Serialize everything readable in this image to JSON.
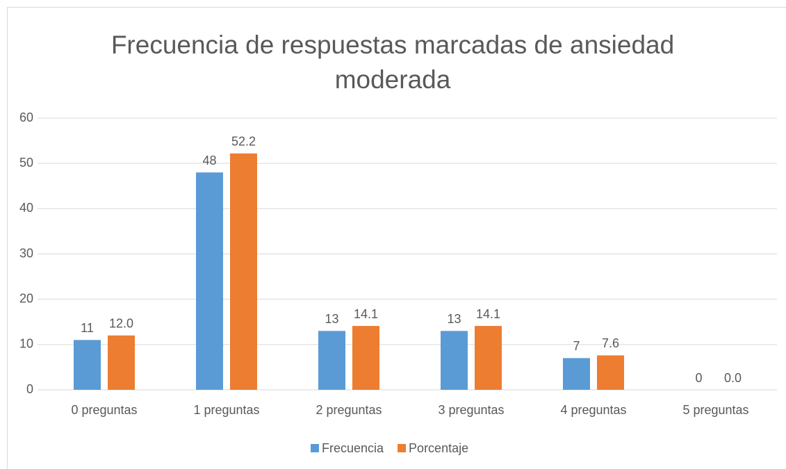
{
  "chart_data": {
    "type": "bar",
    "title": "Frecuencia de respuestas marcadas de ansiedad moderada",
    "categories": [
      "0 preguntas",
      "1 preguntas",
      "2 preguntas",
      "3 preguntas",
      "4 preguntas",
      "5 preguntas"
    ],
    "series": [
      {
        "name": "Frecuencia",
        "color": "#5b9bd5",
        "values": [
          11,
          48,
          13,
          13,
          7,
          0
        ]
      },
      {
        "name": "Porcentaje",
        "color": "#ed7d31",
        "values": [
          12.0,
          52.2,
          14.1,
          14.1,
          7.6,
          0.0
        ],
        "value_labels": [
          "12.0",
          "52.2",
          "14.1",
          "14.1",
          "7.6",
          "0.0"
        ]
      }
    ],
    "ylim": [
      0,
      60
    ],
    "yticks": [
      0,
      10,
      20,
      30,
      40,
      50,
      60
    ],
    "grid": true,
    "legend": "bottom"
  }
}
